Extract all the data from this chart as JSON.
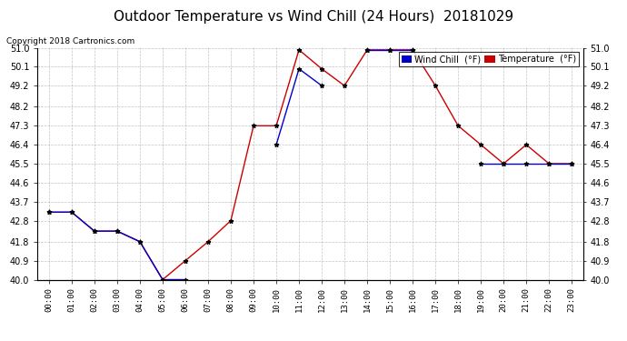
{
  "title": "Outdoor Temperature vs Wind Chill (24 Hours)  20181029",
  "copyright": "Copyright 2018 Cartronics.com",
  "hours": [
    "00:00",
    "01:00",
    "02:00",
    "03:00",
    "04:00",
    "05:00",
    "06:00",
    "07:00",
    "08:00",
    "09:00",
    "10:00",
    "11:00",
    "12:00",
    "13:00",
    "14:00",
    "15:00",
    "16:00",
    "17:00",
    "18:00",
    "19:00",
    "20:00",
    "21:00",
    "22:00",
    "23:00"
  ],
  "temperature": [
    43.2,
    43.2,
    42.3,
    42.3,
    41.8,
    40.0,
    40.9,
    41.8,
    42.8,
    47.3,
    47.3,
    50.9,
    50.0,
    49.2,
    50.9,
    50.9,
    50.9,
    49.2,
    47.3,
    46.4,
    45.5,
    46.4,
    45.5,
    45.5
  ],
  "wind_chill": [
    43.2,
    43.2,
    42.3,
    42.3,
    41.8,
    40.0,
    40.0,
    null,
    null,
    null,
    46.4,
    50.0,
    49.2,
    null,
    50.9,
    50.9,
    50.9,
    null,
    null,
    45.5,
    45.5,
    45.5,
    45.5,
    45.5
  ],
  "ylim": [
    40.0,
    51.0
  ],
  "yticks": [
    40.0,
    40.9,
    41.8,
    42.8,
    43.7,
    44.6,
    45.5,
    46.4,
    47.3,
    48.2,
    49.2,
    50.1,
    51.0
  ],
  "temp_color": "#cc0000",
  "wind_color": "#0000cc",
  "marker_color": "#000000",
  "bg_color": "#ffffff",
  "grid_color": "#888888",
  "title_fontsize": 11,
  "legend_wind_label": "Wind Chill  (°F)",
  "legend_temp_label": "Temperature  (°F)"
}
